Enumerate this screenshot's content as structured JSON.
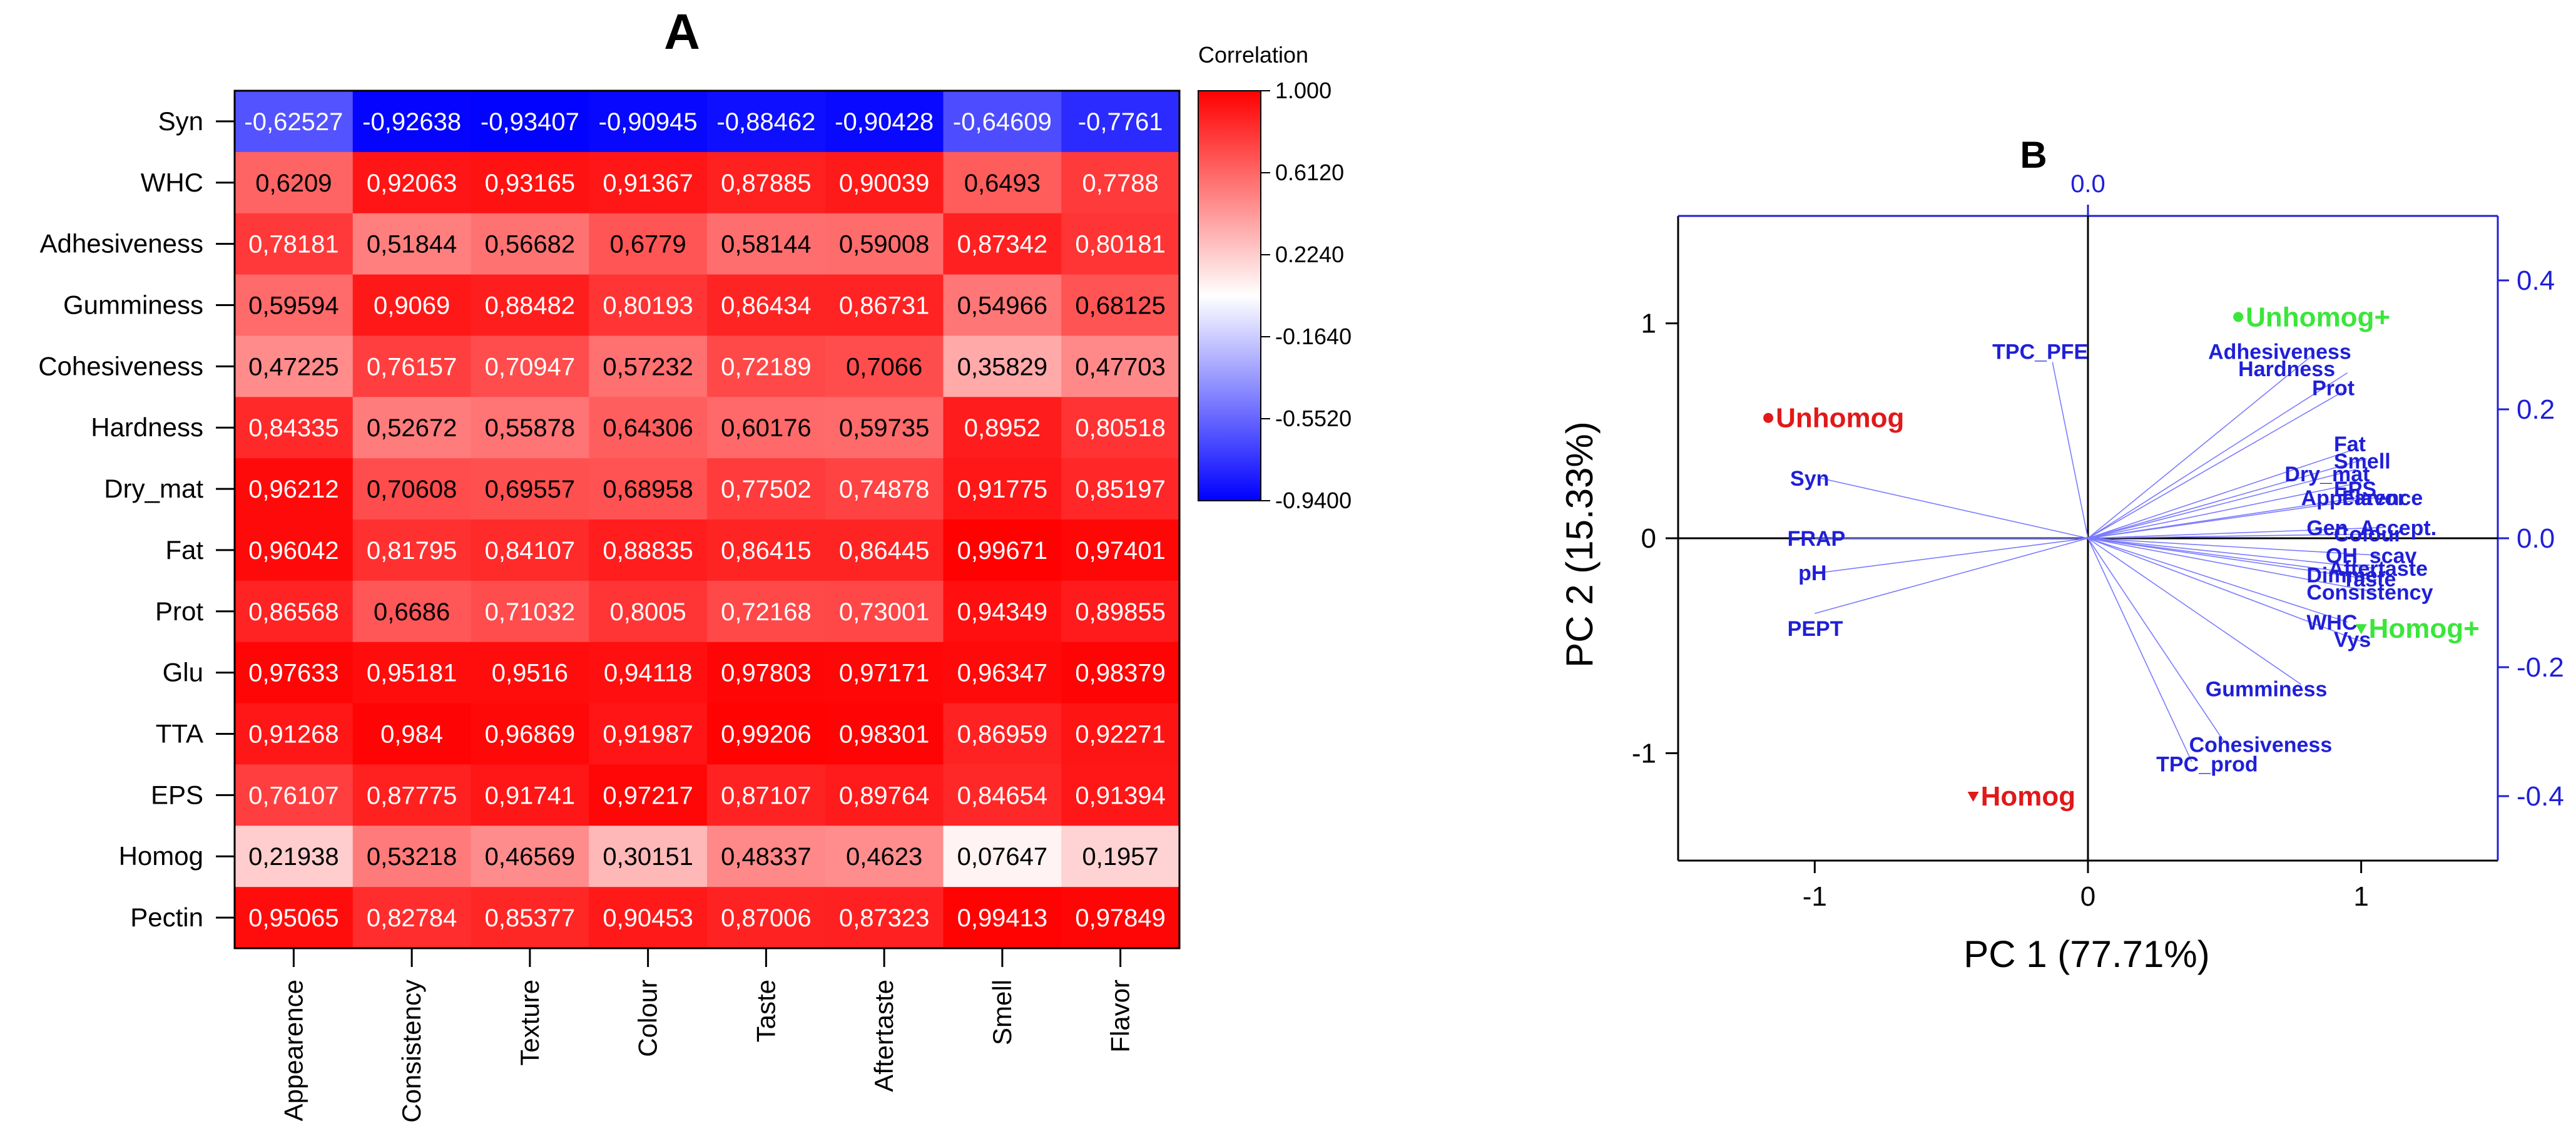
{
  "chart_data": [
    {
      "type": "heatmap",
      "panel_label": "A",
      "legend_title": "Correlation",
      "colorbar_ticks": [
        "1.000",
        "0.6120",
        "0.2240",
        "-0.1640",
        "-0.5520",
        "-0.9400"
      ],
      "value_range": [
        -0.94,
        1.0
      ],
      "colors": {
        "low": "#0000ff",
        "mid": "#ffffff",
        "high": "#ff0000"
      },
      "rows": [
        "Syn",
        "WHC",
        "Adhesiveness",
        "Gumminess",
        "Cohesiveness",
        "Hardness",
        "Dry_mat",
        "Fat",
        "Prot",
        "Glu",
        "TTA",
        "EPS",
        "Homog",
        "Pectin"
      ],
      "columns": [
        "Appearence",
        "Consistency",
        "Texture",
        "Colour",
        "Taste",
        "Aftertaste",
        "Smell",
        "Flavor"
      ],
      "labels": [
        [
          "-0,62527",
          "-0,92638",
          "-0,93407",
          "-0,90945",
          "-0,88462",
          "-0,90428",
          "-0,64609",
          "-0,7761"
        ],
        [
          "0,6209",
          "0,92063",
          "0,93165",
          "0,91367",
          "0,87885",
          "0,90039",
          "0,6493",
          "0,7788"
        ],
        [
          "0,78181",
          "0,51844",
          "0,56682",
          "0,6779",
          "0,58144",
          "0,59008",
          "0,87342",
          "0,80181"
        ],
        [
          "0,59594",
          "0,9069",
          "0,88482",
          "0,80193",
          "0,86434",
          "0,86731",
          "0,54966",
          "0,68125"
        ],
        [
          "0,47225",
          "0,76157",
          "0,70947",
          "0,57232",
          "0,72189",
          "0,7066",
          "0,35829",
          "0,47703"
        ],
        [
          "0,84335",
          "0,52672",
          "0,55878",
          "0,64306",
          "0,60176",
          "0,59735",
          "0,8952",
          "0,80518"
        ],
        [
          "0,96212",
          "0,70608",
          "0,69557",
          "0,68958",
          "0,77502",
          "0,74878",
          "0,91775",
          "0,85197"
        ],
        [
          "0,96042",
          "0,81795",
          "0,84107",
          "0,88835",
          "0,86415",
          "0,86445",
          "0,99671",
          "0,97401"
        ],
        [
          "0,86568",
          "0,6686",
          "0,71032",
          "0,8005",
          "0,72168",
          "0,73001",
          "0,94349",
          "0,89855"
        ],
        [
          "0,97633",
          "0,95181",
          "0,9516",
          "0,94118",
          "0,97803",
          "0,97171",
          "0,96347",
          "0,98379"
        ],
        [
          "0,91268",
          "0,984",
          "0,96869",
          "0,91987",
          "0,99206",
          "0,98301",
          "0,86959",
          "0,92271"
        ],
        [
          "0,76107",
          "0,87775",
          "0,91741",
          "0,97217",
          "0,87107",
          "0,89764",
          "0,84654",
          "0,91394"
        ],
        [
          "0,21938",
          "0,53218",
          "0,46569",
          "0,30151",
          "0,48337",
          "0,4623",
          "0,07647",
          "0,1957"
        ],
        [
          "0,95065",
          "0,82784",
          "0,85377",
          "0,90453",
          "0,87006",
          "0,87323",
          "0,99413",
          "0,97849"
        ]
      ],
      "values": [
        [
          -0.62527,
          -0.92638,
          -0.93407,
          -0.90945,
          -0.88462,
          -0.90428,
          -0.64609,
          -0.7761
        ],
        [
          0.6209,
          0.92063,
          0.93165,
          0.91367,
          0.87885,
          0.90039,
          0.6493,
          0.7788
        ],
        [
          0.78181,
          0.51844,
          0.56682,
          0.6779,
          0.58144,
          0.59008,
          0.87342,
          0.80181
        ],
        [
          0.59594,
          0.9069,
          0.88482,
          0.80193,
          0.86434,
          0.86731,
          0.54966,
          0.68125
        ],
        [
          0.47225,
          0.76157,
          0.70947,
          0.57232,
          0.72189,
          0.7066,
          0.35829,
          0.47703
        ],
        [
          0.84335,
          0.52672,
          0.55878,
          0.64306,
          0.60176,
          0.59735,
          0.8952,
          0.80518
        ],
        [
          0.96212,
          0.70608,
          0.69557,
          0.68958,
          0.77502,
          0.74878,
          0.91775,
          0.85197
        ],
        [
          0.96042,
          0.81795,
          0.84107,
          0.88835,
          0.86415,
          0.86445,
          0.99671,
          0.97401
        ],
        [
          0.86568,
          0.6686,
          0.71032,
          0.8005,
          0.72168,
          0.73001,
          0.94349,
          0.89855
        ],
        [
          0.97633,
          0.95181,
          0.9516,
          0.94118,
          0.97803,
          0.97171,
          0.96347,
          0.98379
        ],
        [
          0.91268,
          0.984,
          0.96869,
          0.91987,
          0.99206,
          0.98301,
          0.86959,
          0.92271
        ],
        [
          0.76107,
          0.87775,
          0.91741,
          0.97217,
          0.87107,
          0.89764,
          0.84654,
          0.91394
        ],
        [
          0.21938,
          0.53218,
          0.46569,
          0.30151,
          0.48337,
          0.4623,
          0.07647,
          0.1957
        ],
        [
          0.95065,
          0.82784,
          0.85377,
          0.90453,
          0.87006,
          0.87323,
          0.99413,
          0.97849
        ]
      ]
    },
    {
      "type": "scatter",
      "subtype": "biplot",
      "panel_label": "B",
      "xlabel": "PC 1 (77.71%)",
      "ylabel": "PC 2 (15.33%)",
      "xlim": [
        -1.5,
        1.5
      ],
      "ylim": [
        -1.5,
        1.5
      ],
      "x_ticks": [
        -1,
        0,
        1
      ],
      "x_tick_labels": [
        "-1",
        "0",
        "1"
      ],
      "y_ticks": [
        -1,
        0,
        1
      ],
      "y_tick_labels": [
        "-1",
        "0",
        "1"
      ],
      "top_axis_label": "0.0",
      "top_axis_value": 0,
      "right_ticks": [
        0.4,
        0.2,
        0.0,
        -0.2,
        -0.4
      ],
      "right_tick_labels": [
        "0.4",
        "0.2",
        "0.0",
        "-0.2",
        "-0.4"
      ],
      "loadings": [
        {
          "label": "TPC_PFE",
          "x": -0.13,
          "y": 0.82,
          "lx": -0.35,
          "ly": 0.87
        },
        {
          "label": "Syn",
          "x": -0.98,
          "y": 0.28,
          "lx": -1.09,
          "ly": 0.28
        },
        {
          "label": "FRAP",
          "x": -1.0,
          "y": 0.0,
          "lx": -1.1,
          "ly": 0.0
        },
        {
          "label": "pH",
          "x": -0.98,
          "y": -0.16,
          "lx": -1.06,
          "ly": -0.16
        },
        {
          "label": "PEPT",
          "x": -1.0,
          "y": -0.35,
          "lx": -1.1,
          "ly": -0.42
        },
        {
          "label": "Adhesiveness",
          "x": 0.82,
          "y": 0.85,
          "lx": 0.44,
          "ly": 0.87
        },
        {
          "label": "Hardness",
          "x": 0.95,
          "y": 0.77,
          "lx": 0.55,
          "ly": 0.79
        },
        {
          "label": "Prot",
          "x": 0.93,
          "y": 0.68,
          "lx": 0.82,
          "ly": 0.7
        },
        {
          "label": "Fat",
          "x": 0.99,
          "y": 0.42,
          "lx": 0.9,
          "ly": 0.44
        },
        {
          "label": "Smell",
          "x": 1.02,
          "y": 0.37,
          "lx": 0.9,
          "ly": 0.36
        },
        {
          "label": "Dry_mat",
          "x": 0.98,
          "y": 0.32,
          "lx": 0.72,
          "ly": 0.3
        },
        {
          "label": "EPS",
          "x": 1.0,
          "y": 0.26,
          "lx": 0.9,
          "ly": 0.23
        },
        {
          "label": "Appearence",
          "x": 1.05,
          "y": 0.2,
          "lx": 0.78,
          "ly": 0.19
        },
        {
          "label": "Flavor",
          "x": 1.06,
          "y": 0.19,
          "lx": 0.93,
          "ly": 0.19
        },
        {
          "label": "Gen_Accept.",
          "x": 1.08,
          "y": 0.05,
          "lx": 0.8,
          "ly": 0.05
        },
        {
          "label": "Colour",
          "x": 1.05,
          "y": 0.02,
          "lx": 0.9,
          "ly": 0.02
        },
        {
          "label": "OH_scav",
          "x": 1.07,
          "y": -0.08,
          "lx": 0.87,
          "ly": -0.08
        },
        {
          "label": "Aftertaste",
          "x": 1.05,
          "y": -0.14,
          "lx": 0.88,
          "ly": -0.14
        },
        {
          "label": "Dimmer",
          "x": 1.02,
          "y": -0.17,
          "lx": 0.8,
          "ly": -0.17
        },
        {
          "label": "Taste",
          "x": 1.03,
          "y": -0.19,
          "lx": 0.93,
          "ly": -0.19
        },
        {
          "label": "Consistency",
          "x": 1.05,
          "y": -0.25,
          "lx": 0.8,
          "ly": -0.25
        },
        {
          "label": "WHC",
          "x": 0.95,
          "y": -0.39,
          "lx": 0.8,
          "ly": -0.39
        },
        {
          "label": "Vys",
          "x": 1.0,
          "y": -0.48,
          "lx": 0.9,
          "ly": -0.47
        },
        {
          "label": "Gumminess",
          "x": 0.78,
          "y": -0.68,
          "lx": 0.43,
          "ly": -0.7
        },
        {
          "label": "Cohesiveness",
          "x": 0.5,
          "y": -0.95,
          "lx": 0.37,
          "ly": -0.96
        },
        {
          "label": "TPC_prod",
          "x": 0.38,
          "y": -1.04,
          "lx": 0.25,
          "ly": -1.05
        }
      ],
      "scores": [
        {
          "label": "Unhomog",
          "x": -1.17,
          "y": 0.56,
          "color": "#e01919",
          "marker": "circle"
        },
        {
          "label": "Homog",
          "x": -0.42,
          "y": -1.2,
          "color": "#e01919",
          "marker": "triangle-down"
        },
        {
          "label": "Unhomog+",
          "x": 0.55,
          "y": 1.03,
          "color": "#3ae63a",
          "marker": "circle"
        },
        {
          "label": "Homog+",
          "x": 1.0,
          "y": -0.42,
          "color": "#3ae63a",
          "marker": "triangle-down"
        }
      ],
      "colors": {
        "axis": "#000000",
        "secondary_axis": "#1f1fd8",
        "loading_line": "#7b7bff",
        "loading_text": "#1f1fd8"
      }
    }
  ]
}
